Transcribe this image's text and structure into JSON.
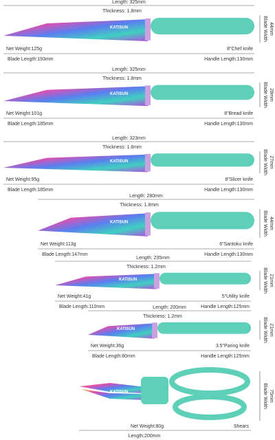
{
  "brand": "KATISUN",
  "blade_width_label": "Blade Width",
  "knives": [
    {
      "length": "Length: 325mm",
      "thickness": "Thickness: 1.8mm",
      "blade_width": "44mm",
      "net_weight": "Net Weight:125g",
      "name": "8\"Chef knife",
      "blade_length": "Blade Length:193mm",
      "handle_length": "Handle Length:130mm"
    },
    {
      "length": "Length: 325mm",
      "thickness": "Thickness: 1.8mm",
      "blade_width": "28mm",
      "net_weight": "Net Weight:101g",
      "name": "8\"Bread knife",
      "blade_length": "Blade Length:185mm",
      "handle_length": "Handle Length:130mm"
    },
    {
      "length": "Length: 323mm",
      "thickness": "Thickness: 1.8mm",
      "blade_width": "27mm",
      "net_weight": "Net Weight:95g",
      "name": "8\"Slicer knife",
      "blade_length": "Blade Length:185mm",
      "handle_length": "Handle Length:130mm"
    },
    {
      "length": "Length: 280mm",
      "thickness": "Thickness: 1.8mm",
      "blade_width": "44mm",
      "net_weight": "Net Weight:113g",
      "name": "6\"Santoku knife",
      "blade_length": "Blade Length:147mm",
      "handle_length": "Handle Length:130mm"
    },
    {
      "length": "Length: 235mm",
      "thickness": "Thickness: 1.2mm",
      "blade_width": "21mm",
      "net_weight": "Net Weight:41g",
      "name": "5\"Utility knife",
      "blade_length": "Blade Length:110mm",
      "handle_length": "Handle Length:125mm"
    },
    {
      "length": "Length: 200mm",
      "thickness": "Thickness: 1.2mm",
      "blade_width": "21mm",
      "net_weight": "Net Weight:36g",
      "name": "3.5\"Paring knife",
      "blade_length": "Blade Length:80mm",
      "handle_length": "Handle Length:125mm"
    }
  ],
  "shears": {
    "blade_width": "75mm",
    "net_weight": "Net Weight:80g",
    "name": "Shears",
    "length": "Length:200mm"
  }
}
